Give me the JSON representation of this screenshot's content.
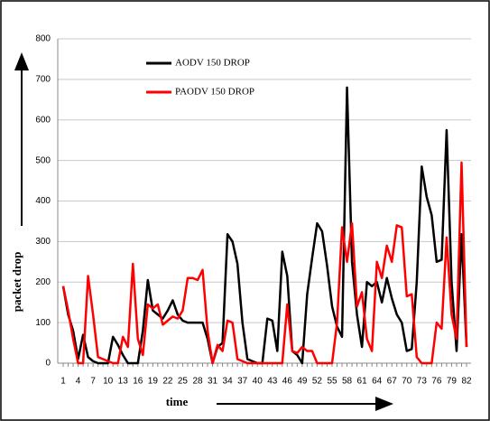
{
  "chart_data": {
    "type": "line",
    "x_label": "time",
    "y_label": "packet drop",
    "categories": [
      1,
      null,
      null,
      4,
      null,
      null,
      7,
      null,
      null,
      10,
      null,
      null,
      13,
      null,
      null,
      16,
      null,
      null,
      19,
      null,
      null,
      22,
      null,
      null,
      25,
      null,
      null,
      28,
      null,
      null,
      31,
      null,
      null,
      34,
      null,
      null,
      37,
      null,
      null,
      40,
      null,
      null,
      43,
      null,
      null,
      46,
      null,
      null,
      49,
      null,
      null,
      52,
      null,
      null,
      55,
      null,
      null,
      58,
      null,
      null,
      61,
      null,
      null,
      64,
      null,
      null,
      67,
      null,
      null,
      70,
      null,
      null,
      73,
      null,
      null,
      76,
      null,
      null,
      79,
      null,
      null,
      82
    ],
    "series": [
      {
        "name": "AODV 150 DROP",
        "color": "#000000",
        "values": [
          190,
          120,
          80,
          10,
          70,
          15,
          5,
          0,
          0,
          0,
          65,
          45,
          20,
          0,
          0,
          0,
          80,
          205,
          130,
          120,
          110,
          130,
          155,
          120,
          105,
          100,
          100,
          100,
          100,
          60,
          0,
          40,
          50,
          318,
          300,
          245,
          100,
          10,
          5,
          0,
          0,
          110,
          105,
          30,
          275,
          215,
          30,
          20,
          0,
          170,
          260,
          345,
          325,
          240,
          140,
          90,
          65,
          680,
          250,
          120,
          40,
          200,
          190,
          200,
          150,
          210,
          160,
          120,
          100,
          30,
          35,
          200,
          485,
          410,
          365,
          250,
          255,
          575,
          200,
          30,
          318,
          40
        ]
      },
      {
        "name": "PAODV 150 DROP",
        "color": "#ff0000",
        "values": [
          190,
          130,
          60,
          0,
          0,
          215,
          120,
          15,
          10,
          5,
          0,
          0,
          65,
          40,
          245,
          60,
          20,
          145,
          135,
          145,
          95,
          105,
          115,
          110,
          130,
          210,
          210,
          205,
          230,
          80,
          0,
          45,
          30,
          105,
          100,
          10,
          5,
          0,
          0,
          0,
          0,
          0,
          0,
          0,
          0,
          145,
          30,
          25,
          40,
          30,
          30,
          0,
          0,
          0,
          0,
          100,
          335,
          250,
          345,
          140,
          175,
          60,
          30,
          250,
          210,
          290,
          250,
          340,
          335,
          165,
          170,
          15,
          0,
          0,
          0,
          100,
          85,
          310,
          120,
          60,
          495,
          40
        ]
      }
    ],
    "ylim": [
      0,
      800
    ],
    "yticks": [
      0,
      100,
      200,
      300,
      400,
      500,
      600,
      700,
      800
    ],
    "grid": true,
    "legend": "top-left"
  }
}
